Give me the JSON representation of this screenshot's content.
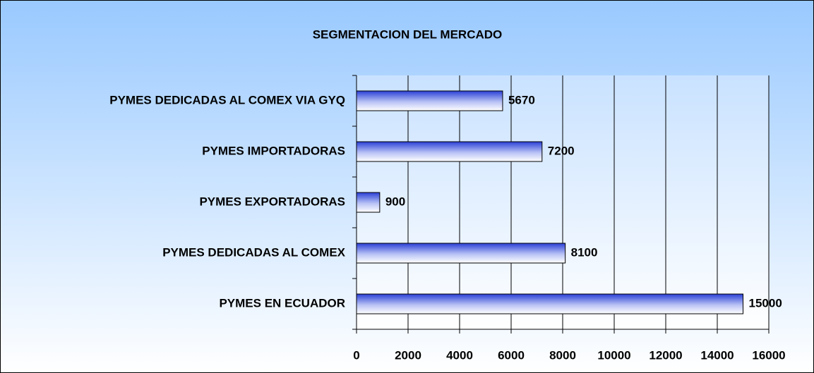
{
  "chart_data": {
    "type": "bar",
    "title": "SEGMENTACION DEL MERCADO",
    "categories": [
      "PYMES DEDICADAS AL COMEX VIA GYQ",
      "PYMES IMPORTADORAS",
      "PYMES EXPORTADORAS",
      "PYMES DEDICADAS AL COMEX",
      "PYMES EN ECUADOR"
    ],
    "values": [
      5670,
      7200,
      900,
      8100,
      15000
    ],
    "color": "#2a3fd6",
    "xlim": [
      0,
      16000
    ],
    "xticks": [
      0,
      2000,
      4000,
      6000,
      8000,
      10000,
      12000,
      14000,
      16000
    ],
    "grid": true
  }
}
